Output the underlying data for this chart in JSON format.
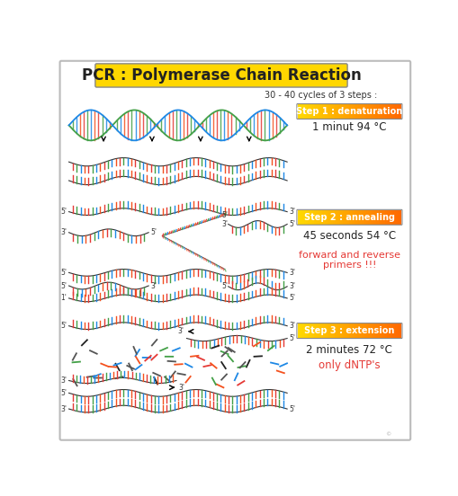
{
  "title": "PCR : Polymerase Chain Reaction",
  "title_bg": "#FFD700",
  "subtitle": "30 - 40 cycles of 3 steps :",
  "bg_color": "#FFFFFF",
  "border_color": "#AAAAAA",
  "step1_label": "Step 1 : denaturation",
  "step1_desc": "1 minut 94 °C",
  "step1_label_bg_left": "#FFD700",
  "step1_label_bg_right": "#FF6600",
  "step2_label": "Step 2 : annealing",
  "step2_desc": "45 seconds 54 °C",
  "step2_desc2": "forward and reverse\nprimers !!!",
  "step2_label_bg_left": "#FFD700",
  "step2_label_bg_right": "#FF6600",
  "step3_label": "Step 3 : extension",
  "step3_desc": "2 minutes 72 °C",
  "step3_desc2": "only dNTP's",
  "step3_label_bg_left": "#FFD700",
  "step3_label_bg_right": "#FF6600",
  "dna_colors": [
    "#E53935",
    "#43A047",
    "#1E88E5",
    "#F4511E"
  ],
  "helix_color1": "#43A047",
  "helix_color2": "#1E88E5",
  "strand_color": "#333333",
  "text_color": "#222222",
  "red_text": "#E53935"
}
